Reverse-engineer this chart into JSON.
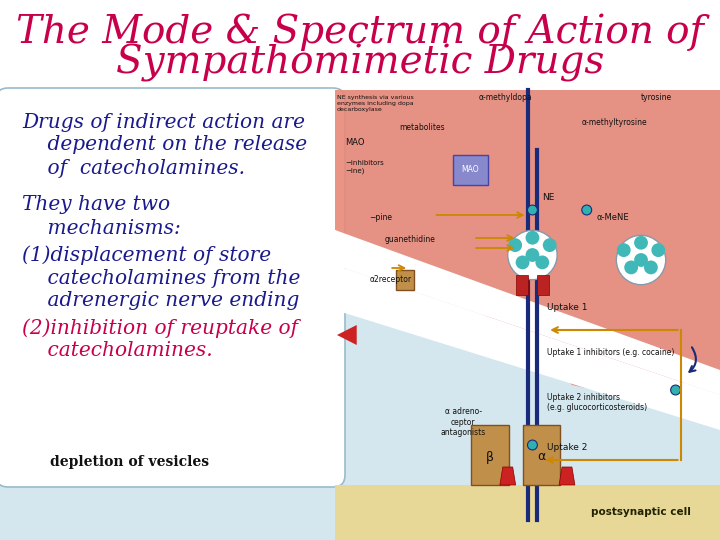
{
  "title_line1": "The Mode & Spectrum of Action of",
  "title_line2": "Sympathomimetic Drugs",
  "title_color": "#c8004b",
  "bg_color": "#ffffff",
  "text_blue": "#1a1a8c",
  "text_red": "#c8004b",
  "text_black": "#111111",
  "para1_line1": "Drugs of indirect action are",
  "para1_line2": "    dependent on the release",
  "para1_line3": "    of  catecholamines.",
  "para2_line1": "They have two",
  "para2_line2": "    mechanisms:",
  "item1_line1": "(1)displacement of store",
  "item1_line2": "    catecholamines from the",
  "item1_line3": "    adrenergic nerve ending",
  "item2_line1": "(2)inhibition of reuptake of",
  "item2_line2": "    catecholamines.",
  "footer": "depletion of vesicles",
  "font_size_title": 28,
  "font_size_body": 14.5,
  "font_size_footer": 10
}
